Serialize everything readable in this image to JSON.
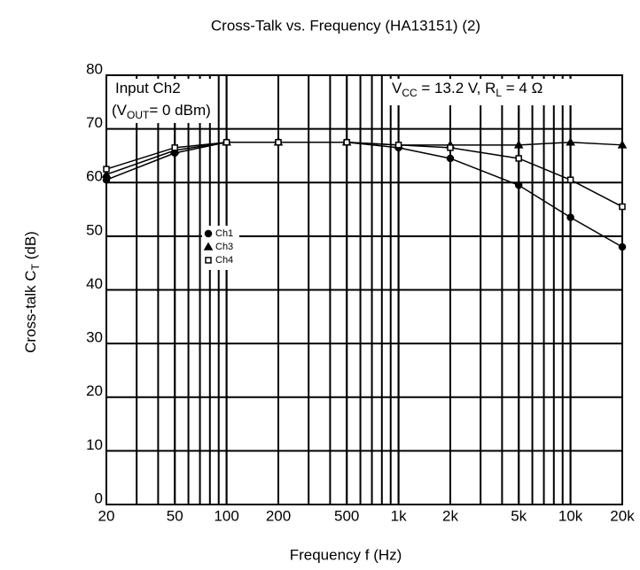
{
  "chart_data": {
    "type": "line",
    "title": "Cross-Talk vs. Frequency (HA13151) (2)",
    "x_label": "Frequency f (Hz)",
    "y_label": [
      {
        "text": "Cross-talk  C"
      },
      {
        "text": "T",
        "sub": true
      },
      {
        "text": " (dB)"
      }
    ],
    "log_x": true,
    "grid": true,
    "xlim": [
      20,
      20000
    ],
    "ylim": [
      0,
      80
    ],
    "xticks": [
      20,
      50,
      100,
      200,
      500,
      {
        "value": 1000,
        "label": "1k"
      },
      {
        "value": 2000,
        "label": "2k"
      },
      {
        "value": 5000,
        "label": "5k"
      },
      {
        "value": 10000,
        "label": "10k"
      },
      {
        "value": 20000,
        "label": "20k"
      }
    ],
    "yticks": [
      0,
      10,
      20,
      30,
      40,
      50,
      60,
      70,
      80
    ],
    "x": [
      20,
      50,
      100,
      200,
      500,
      1000,
      2000,
      5000,
      10000,
      20000
    ],
    "series": [
      {
        "name": "Ch1",
        "marker": "circle",
        "color": "#000000",
        "values": [
          60.5,
          65.5,
          67.5,
          67.5,
          67.5,
          66.5,
          64.5,
          59.5,
          53.5,
          48
        ]
      },
      {
        "name": "Ch3",
        "marker": "triangle",
        "color": "#000000",
        "values": [
          61.5,
          66,
          67.5,
          67.5,
          67.5,
          67,
          67,
          67,
          67.5,
          67
        ]
      },
      {
        "name": "Ch4",
        "marker": "square",
        "color": "#000000",
        "values": [
          62.5,
          66.5,
          67.5,
          67.5,
          67.5,
          67,
          66.5,
          64.5,
          60.5,
          55.5
        ]
      }
    ],
    "annotations": [
      [
        {
          "text": "Input Ch2"
        }
      ],
      [
        {
          "text": "(V"
        },
        {
          "text": "OUT",
          "sub": true
        },
        {
          "text": "= 0 dBm)"
        }
      ],
      [
        {
          "text": "V"
        },
        {
          "text": "CC",
          "sub": true
        },
        {
          "text": " = 13.2 V, R"
        },
        {
          "text": "L",
          "sub": true
        },
        {
          "text": " = 4 Ω"
        }
      ]
    ]
  }
}
